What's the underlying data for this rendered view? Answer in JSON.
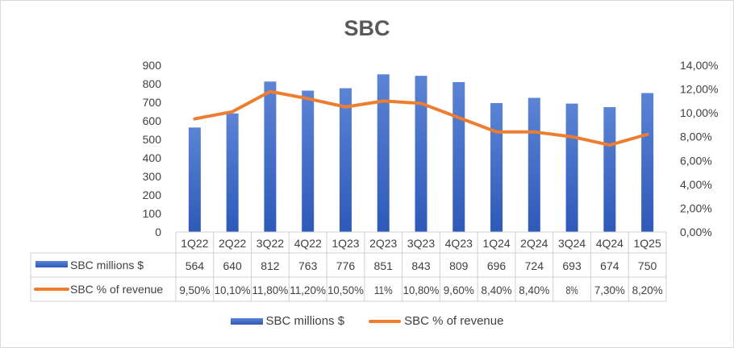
{
  "chart_data": {
    "type": "bar",
    "title": "SBC",
    "categories": [
      "1Q22",
      "2Q22",
      "3Q22",
      "4Q22",
      "1Q23",
      "2Q23",
      "3Q23",
      "4Q23",
      "1Q24",
      "2Q24",
      "3Q24",
      "4Q24",
      "1Q25"
    ],
    "series": [
      {
        "name": "SBC millions $",
        "type": "bar",
        "axis": "left",
        "color": "#4472c4",
        "values": [
          564,
          640,
          812,
          763,
          776,
          851,
          843,
          809,
          696,
          724,
          693,
          674,
          750
        ],
        "labels": [
          "564",
          "640",
          "812",
          "763",
          "776",
          "851",
          "843",
          "809",
          "696",
          "724",
          "693",
          "674",
          "750"
        ]
      },
      {
        "name": "SBC % of revenue",
        "type": "line",
        "axis": "right",
        "color": "#ed7d31",
        "values": [
          9.5,
          10.1,
          11.8,
          11.2,
          10.5,
          11,
          10.8,
          9.6,
          8.4,
          8.4,
          8,
          7.3,
          8.2
        ],
        "labels": [
          "9,50%",
          "10,10%",
          "11,80%",
          "11,20%",
          "10,50%",
          "11%",
          "10,80%",
          "9,60%",
          "8,40%",
          "8,40%",
          "8%",
          "7,30%",
          "8,20%"
        ]
      }
    ],
    "y_left": {
      "ylim": [
        0,
        900
      ],
      "ticks": [
        "0",
        "100",
        "200",
        "300",
        "400",
        "500",
        "600",
        "700",
        "800",
        "900"
      ]
    },
    "y_right": {
      "ylim": [
        0,
        14
      ],
      "ticks": [
        "0,00%",
        "2,00%",
        "4,00%",
        "6,00%",
        "8,00%",
        "10,00%",
        "12,00%",
        "14,00%"
      ]
    },
    "data_table": true,
    "legend_position": "bottom",
    "grid": false
  }
}
